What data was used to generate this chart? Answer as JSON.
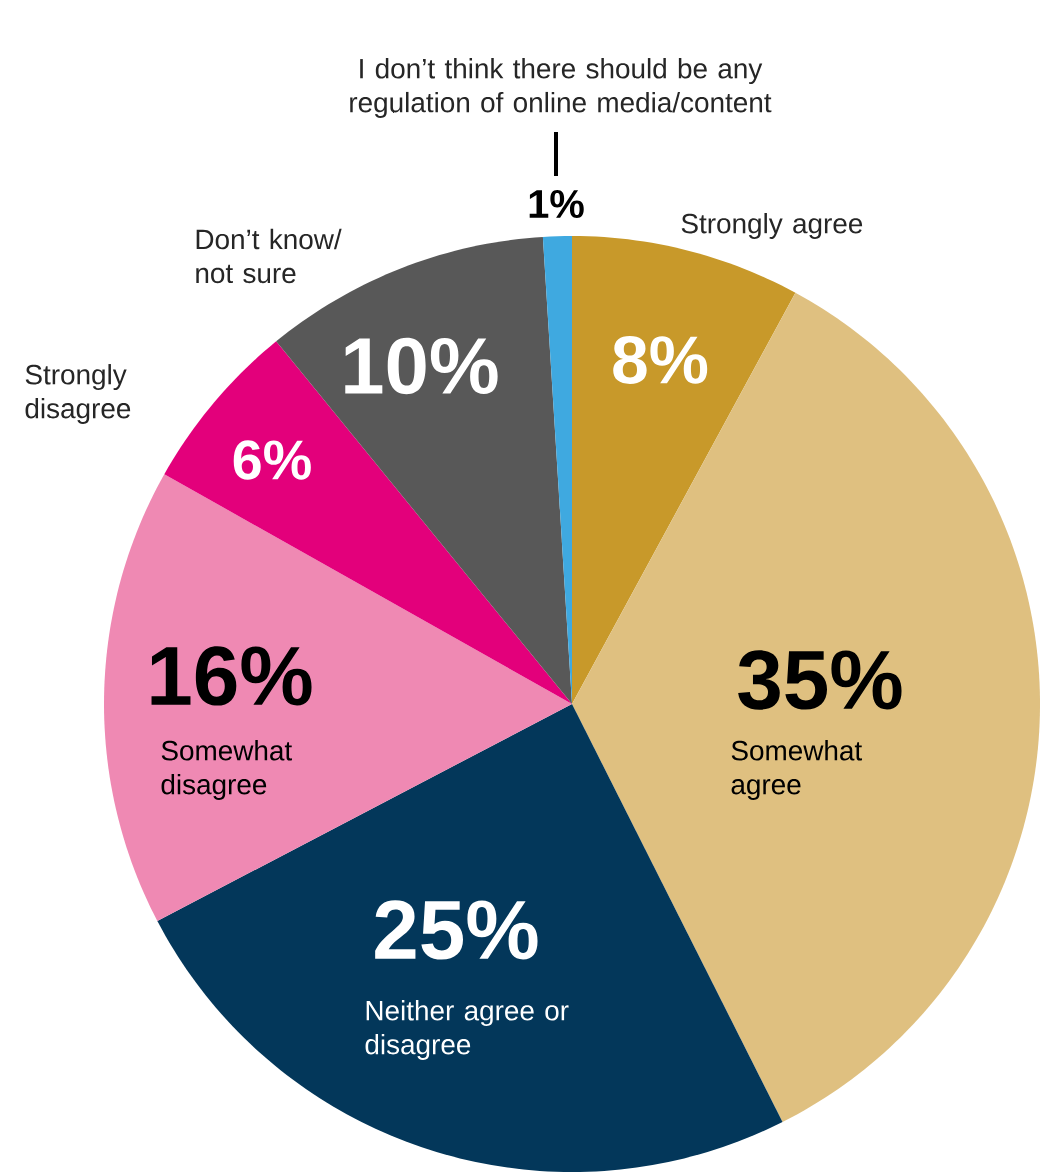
{
  "chart_data": {
    "type": "pie",
    "categories": [
      "Strongly agree",
      "Somewhat agree",
      "Neither agree or disagree",
      "Somewhat disagree",
      "Strongly disagree",
      "Don’t know/ not sure",
      "I don’t think there should be any regulation of online media/content"
    ],
    "values": [
      8,
      35,
      25,
      16,
      6,
      10,
      1
    ],
    "value_labels": [
      "8%",
      "35%",
      "25%",
      "16%",
      "6%",
      "10%",
      "1%"
    ],
    "colors": [
      "#c8992a",
      "#dfc080",
      "#03375a",
      "#ef89b3",
      "#e3007b",
      "#585858",
      "#3fa9e0"
    ]
  }
}
